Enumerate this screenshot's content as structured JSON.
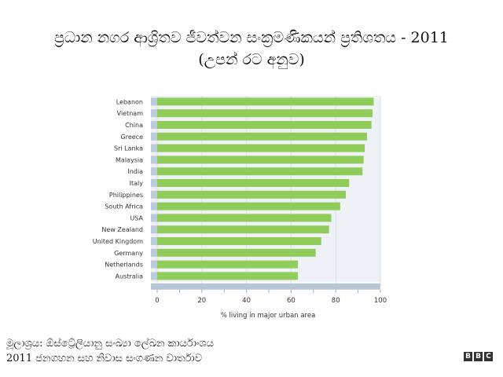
{
  "header": {
    "title": "ප්‍රධාන නගර ආශ්‍රිතව ජීවත්වන සංක්‍රමණිකයන් ප්‍රතිශතය - 2011",
    "subtitle": "(උපන් රට අනුව)"
  },
  "footer": {
    "source_line1": "මූලාශ්‍රය: ඕස්ට්‍රේලියානු සංඛ්‍යා ලේඛන කාර්යාංශය",
    "source_line2": "2011 ජනගහන සහ නිවාස සංගණන වාර්තාව"
  },
  "brand": {
    "letters": [
      "B",
      "B",
      "C"
    ]
  },
  "colors": {
    "bar": "#8fcc5a",
    "track": "#bccbd9",
    "axis": "#b8c7d6",
    "grid": "#d8e0e8"
  },
  "chart_data": {
    "type": "bar",
    "orientation": "horizontal",
    "categories": [
      "Lebanon",
      "Vietnam",
      "China",
      "Greece",
      "Sri Lanka",
      "Malaysia",
      "India",
      "Italy",
      "Philippines",
      "South Africa",
      "USA",
      "New Zealand",
      "United Kingdom",
      "Germany",
      "Netherlands",
      "Australia"
    ],
    "values": [
      97,
      96.5,
      96,
      94,
      93,
      92.5,
      92,
      86,
      84.5,
      82,
      78,
      77,
      73.5,
      71,
      63,
      63
    ],
    "xlabel": "% living in major urban area",
    "ylabel": "",
    "xlim": [
      0,
      100
    ],
    "xticks": [
      0,
      20,
      40,
      60,
      80,
      100
    ],
    "grid": true
  }
}
